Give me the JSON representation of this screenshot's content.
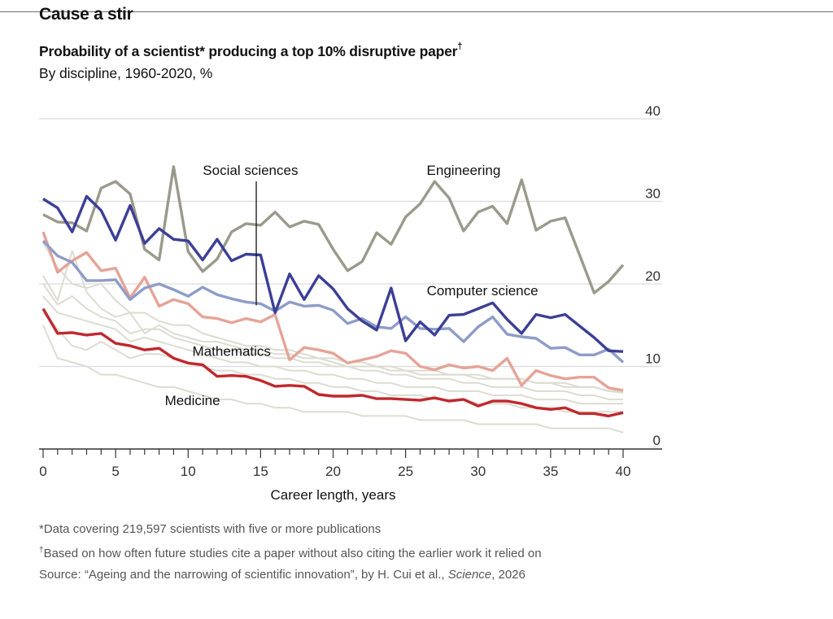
{
  "header": {
    "title": "Cause a stir",
    "subtitle": "Probability of a scientist* producing a top 10% disruptive paper",
    "subtitle_mark": "†",
    "description": "By discipline, 1960-2020, %"
  },
  "footnotes": {
    "note1": "*Data covering 219,597 scientists with five or more publications",
    "note2_mark": "†",
    "note2": "Based on how often future studies cite a paper without also citing the earlier work it relied on",
    "source_prefix": "Source: “Ageing and the narrowing of scientific innovation”, by H. Cui et al., ",
    "source_journal": "Science",
    "source_suffix": ", 2026"
  },
  "chart_data": {
    "type": "line",
    "xlabel": "Career length, years",
    "ylabel": "",
    "xlim": [
      0,
      40
    ],
    "ylim": [
      0,
      40
    ],
    "x_ticks": [
      0,
      5,
      10,
      15,
      20,
      25,
      30,
      35,
      40
    ],
    "y_ticks": [
      10,
      20,
      30,
      40
    ],
    "y_zero_label": "0",
    "y_axis_side": "right",
    "grid": true,
    "colors": {
      "Engineering": "#9a9a8c",
      "Computer science": "#3c3f96",
      "Social sciences": "#8e9cc8",
      "Mathematics": "#e6a397",
      "Medicine": "#c0282d",
      "other": "#dcdcd2",
      "gridline": "#dcdcdc",
      "axis": "#333333"
    },
    "x": [
      0,
      1,
      2,
      3,
      4,
      5,
      6,
      7,
      8,
      9,
      10,
      11,
      12,
      13,
      14,
      15,
      16,
      17,
      18,
      19,
      20,
      21,
      22,
      23,
      24,
      25,
      26,
      27,
      28,
      29,
      30,
      31,
      32,
      33,
      34,
      35,
      36,
      37,
      38,
      39,
      40
    ],
    "series": [
      {
        "name": "Engineering",
        "label_x": 29,
        "label_y": 33.2,
        "values": [
          28.4,
          27.5,
          27.4,
          26.4,
          31.6,
          32.4,
          30.9,
          24.2,
          22.9,
          34.2,
          23.9,
          21.5,
          23.0,
          26.3,
          27.3,
          27.1,
          28.7,
          26.9,
          27.6,
          27.2,
          24.2,
          21.6,
          22.7,
          26.2,
          24.8,
          28.1,
          29.7,
          32.4,
          30.4,
          26.4,
          28.7,
          29.4,
          27.3,
          32.6,
          26.5,
          27.6,
          28.0,
          23.5,
          18.9,
          20.3,
          22.3
        ]
      },
      {
        "name": "Computer science",
        "label_x": 30.3,
        "label_y": 18.6,
        "values": [
          30.3,
          29.2,
          26.3,
          30.6,
          28.9,
          25.3,
          29.5,
          24.9,
          26.7,
          25.4,
          25.2,
          22.9,
          25.4,
          22.8,
          23.6,
          23.5,
          16.5,
          21.2,
          18.1,
          21.0,
          19.4,
          17.0,
          15.5,
          14.4,
          19.5,
          13.1,
          15.4,
          13.8,
          16.2,
          16.3,
          17.0,
          17.7,
          15.7,
          14.0,
          16.3,
          15.9,
          16.3,
          14.9,
          13.5,
          11.9,
          11.8
        ]
      },
      {
        "name": "Social sciences",
        "label_x": 14.3,
        "label_y": 33.2,
        "leader_to": [
          14.7,
          17.4
        ],
        "values": [
          25.2,
          23.4,
          22.6,
          20.4,
          20.4,
          20.5,
          18.1,
          19.5,
          20.0,
          19.3,
          18.5,
          19.6,
          18.7,
          18.2,
          17.8,
          17.6,
          16.7,
          17.8,
          17.3,
          17.4,
          16.8,
          15.2,
          15.8,
          14.8,
          14.6,
          16.0,
          14.6,
          14.5,
          14.6,
          13.0,
          14.8,
          16.0,
          13.9,
          13.6,
          13.4,
          12.2,
          12.3,
          11.4,
          11.4,
          12.1,
          10.5
        ]
      },
      {
        "name": "Mathematics",
        "label_x": 13.0,
        "label_y": 11.3,
        "values": [
          26.3,
          21.4,
          22.8,
          23.8,
          21.6,
          21.9,
          18.3,
          20.8,
          17.3,
          18.1,
          17.6,
          16.0,
          15.8,
          15.3,
          15.8,
          15.4,
          16.3,
          10.8,
          12.3,
          12.0,
          11.6,
          10.4,
          10.8,
          11.2,
          11.9,
          11.6,
          10.0,
          9.6,
          10.2,
          9.8,
          10.0,
          9.5,
          11.0,
          7.7,
          9.5,
          8.9,
          8.5,
          8.7,
          8.7,
          7.4,
          7.1
        ]
      },
      {
        "name": "Medicine",
        "label_x": 10.3,
        "label_y": 5.3,
        "values": [
          17.0,
          14.0,
          14.1,
          13.8,
          14.0,
          12.8,
          12.5,
          12.0,
          12.2,
          11.0,
          10.4,
          10.2,
          8.8,
          8.9,
          8.8,
          8.3,
          7.6,
          7.7,
          7.6,
          6.6,
          6.4,
          6.4,
          6.5,
          6.1,
          6.1,
          6.0,
          5.9,
          6.2,
          5.8,
          6.0,
          5.2,
          5.8,
          5.8,
          5.5,
          5.0,
          4.8,
          5.0,
          4.3,
          4.3,
          4.0,
          4.4
        ]
      },
      {
        "values": [
          25.0,
          22.0,
          20.0,
          19.5,
          20.0,
          18.0,
          16.5,
          16.5,
          15.5,
          15.0,
          15.0,
          14.0,
          13.5,
          13.0,
          12.5,
          12.5,
          12.0,
          12.0,
          11.5,
          11.0,
          11.0,
          10.5,
          10.5,
          10.0,
          10.0,
          9.5,
          9.5,
          9.5,
          9.0,
          9.0,
          9.0,
          8.5,
          8.5,
          8.5,
          8.0,
          8.0,
          8.0,
          7.5,
          7.5,
          7.0,
          7.0
        ]
      },
      {
        "values": [
          20.0,
          17.5,
          18.5,
          17.0,
          16.0,
          15.5,
          14.0,
          14.5,
          14.5,
          13.5,
          13.0,
          12.5,
          12.0,
          12.0,
          11.5,
          11.5,
          11.0,
          11.0,
          10.5,
          10.5,
          10.0,
          10.0,
          9.5,
          9.5,
          9.0,
          9.0,
          8.5,
          8.5,
          8.5,
          8.0,
          8.0,
          7.5,
          7.5,
          7.5,
          7.0,
          7.0,
          7.0,
          6.5,
          6.5,
          6.0,
          6.0
        ]
      },
      {
        "values": [
          18.5,
          16.5,
          16.0,
          15.5,
          15.0,
          14.5,
          13.0,
          13.5,
          13.0,
          12.5,
          12.0,
          11.5,
          11.0,
          10.5,
          10.5,
          10.0,
          10.0,
          9.5,
          9.5,
          9.0,
          9.0,
          8.5,
          8.5,
          8.0,
          8.0,
          7.5,
          7.5,
          7.5,
          7.0,
          7.0,
          7.0,
          6.5,
          6.5,
          6.5,
          6.0,
          6.0,
          6.0,
          5.5,
          5.5,
          5.5,
          5.5
        ]
      },
      {
        "values": [
          16.5,
          14.5,
          12.5,
          12.0,
          13.0,
          12.0,
          11.0,
          11.5,
          11.5,
          11.0,
          10.5,
          10.0,
          9.5,
          9.5,
          9.0,
          9.0,
          8.5,
          8.5,
          8.0,
          8.0,
          7.5,
          7.5,
          7.0,
          7.0,
          6.5,
          6.5,
          6.5,
          6.0,
          6.0,
          6.0,
          5.5,
          5.5,
          5.5,
          5.0,
          5.0,
          5.0,
          4.5,
          4.5,
          4.5,
          4.5,
          4.5
        ]
      },
      {
        "values": [
          15.0,
          11.0,
          10.5,
          10.0,
          9.0,
          9.0,
          8.5,
          8.0,
          7.5,
          7.5,
          7.0,
          6.5,
          6.0,
          6.0,
          5.5,
          5.5,
          5.0,
          5.0,
          4.5,
          4.5,
          4.5,
          4.5,
          4.0,
          4.0,
          4.0,
          4.0,
          3.5,
          3.5,
          3.5,
          3.5,
          3.0,
          3.0,
          3.0,
          3.0,
          3.0,
          2.5,
          2.5,
          2.5,
          2.5,
          2.5,
          2.0
        ]
      },
      {
        "values": [
          21.0,
          18.0,
          24.0,
          19.0,
          17.0,
          16.0,
          16.5,
          14.0,
          15.0,
          14.0,
          13.5,
          13.0,
          13.0,
          12.5,
          12.0,
          12.0,
          11.5,
          11.5,
          11.0,
          11.0,
          10.5,
          10.0,
          10.0,
          10.0,
          9.5,
          9.5,
          9.0,
          9.0,
          9.0,
          9.0,
          8.5,
          8.5,
          8.5,
          8.5,
          8.0,
          8.0,
          7.5,
          7.5,
          7.5,
          7.0,
          6.8
        ]
      }
    ]
  }
}
